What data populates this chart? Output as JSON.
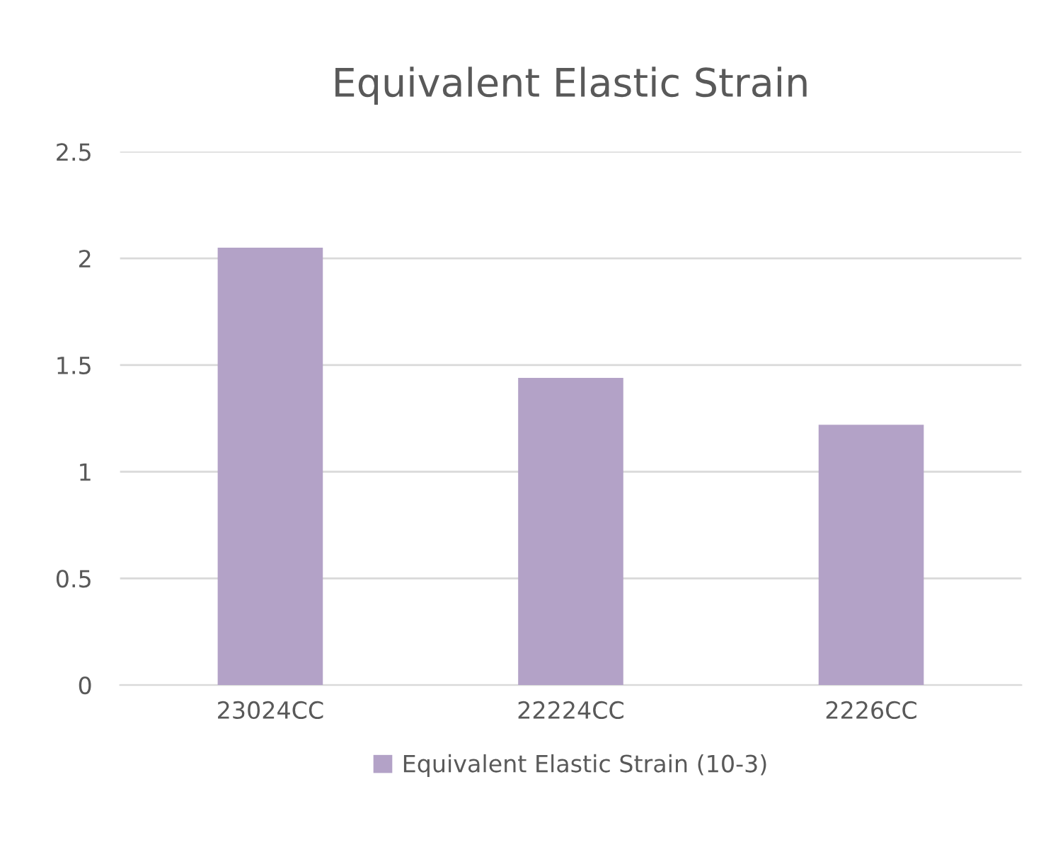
{
  "chart_data": {
    "type": "bar",
    "title": "Equivalent Elastic Strain",
    "categories": [
      "23024CC",
      "22224CC",
      "2226CC"
    ],
    "series": [
      {
        "name": "Equivalent Elastic Strain (10-3)",
        "color": "#b3a2c7",
        "values": [
          2.05,
          1.44,
          1.22
        ]
      }
    ],
    "ylim": [
      0,
      2.5
    ],
    "yticks": [
      0,
      0.5,
      1,
      1.5,
      2,
      2.5
    ],
    "grid": "y",
    "legend": "bottom"
  }
}
